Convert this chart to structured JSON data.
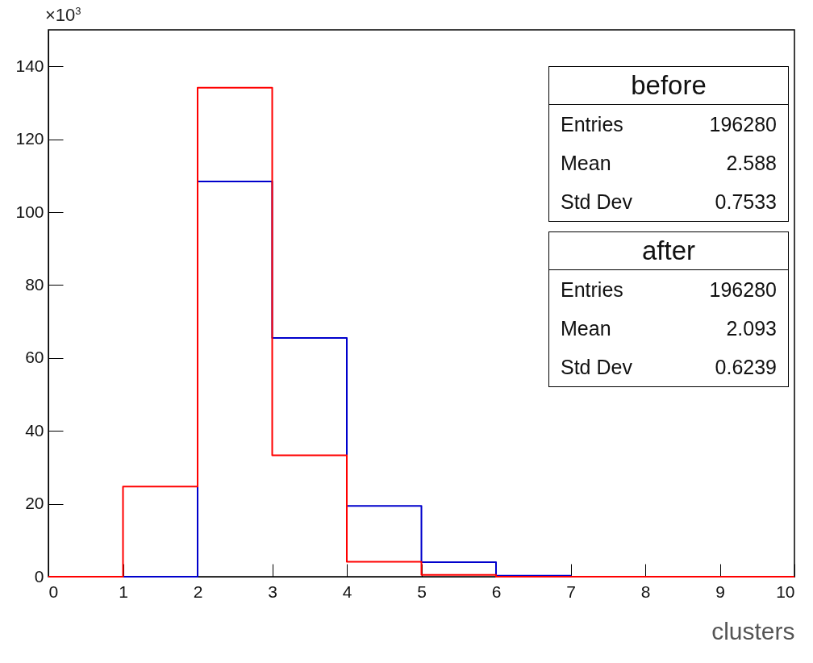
{
  "chart_data": {
    "type": "histogram",
    "xlabel": "clusters",
    "ylabel": "×10$^{3}$",
    "bins": [
      0,
      1,
      2,
      3,
      4,
      5,
      6,
      7,
      8,
      9,
      10
    ],
    "series": [
      {
        "color": "#0000cc",
        "values": [
          0,
          0,
          108.4,
          65.5,
          19.4,
          4.0,
          0.3,
          0,
          0,
          0
        ]
      },
      {
        "color": "#ff0000",
        "values": [
          0,
          24.7,
          134.1,
          33.3,
          4.1,
          0.5,
          0,
          0,
          0,
          0
        ]
      }
    ],
    "xlim": [
      0,
      10
    ],
    "xticks": [
      0,
      1,
      2,
      3,
      4,
      5,
      6,
      7,
      8,
      9,
      10
    ],
    "ylim": [
      0,
      150
    ],
    "yticks": [
      0,
      20,
      40,
      60,
      80,
      100,
      120,
      140
    ],
    "annotations": [
      "before",
      "Entries",
      "196280",
      "Mean",
      "2.588",
      "Std Dev",
      "0.7533",
      "after",
      "Entries",
      "196280",
      "Mean",
      "2.093",
      "Std Dev",
      "0.6239"
    ],
    "grid": false,
    "legend": false
  }
}
